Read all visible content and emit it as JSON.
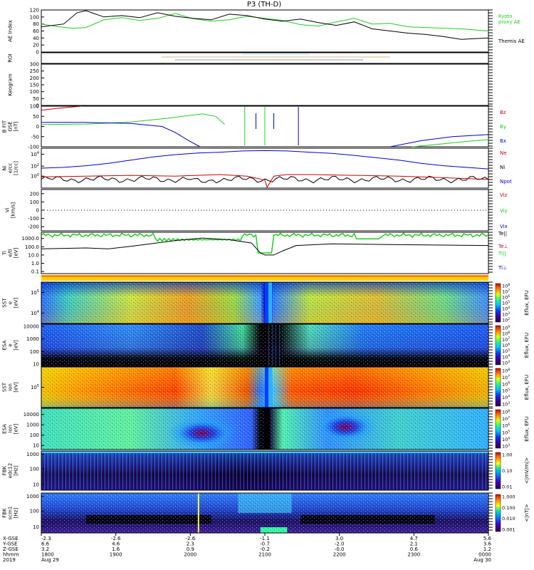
{
  "title": "P3 (TH-D)",
  "colors": {
    "red": "#cc0000",
    "green": "#22cc22",
    "blue": "#0000cc",
    "black": "#000000",
    "lightblue": "#66ccff",
    "orange": "#cc6600"
  },
  "chart_data": [
    {
      "type": "line",
      "panel": "ae",
      "ylabel": "AE Index",
      "ylim": [
        0,
        120
      ],
      "yticks": [
        "0",
        "20",
        "40",
        "60",
        "80",
        "100",
        "120"
      ],
      "series": [
        {
          "name": "Kyoto proxy AE",
          "label_lines": [
            "Kyoto",
            "proxy AE"
          ],
          "color": "#22cc22",
          "x": [
            0,
            0.04,
            0.07,
            0.1,
            0.14,
            0.18,
            0.22,
            0.26,
            0.3,
            0.34,
            0.38,
            0.42,
            0.46,
            0.5,
            0.54,
            0.58,
            0.62,
            0.66,
            0.7,
            0.74,
            0.78,
            0.82,
            0.86,
            0.9,
            0.94,
            1.0
          ],
          "y": [
            80,
            72,
            68,
            70,
            92,
            98,
            90,
            96,
            110,
            95,
            88,
            92,
            102,
            96,
            90,
            78,
            74,
            86,
            96,
            80,
            82,
            72,
            70,
            68,
            66,
            60
          ]
        },
        {
          "name": "Themis AE",
          "label_lines": [
            "Themis AE"
          ],
          "color": "#000000",
          "x": [
            0,
            0.05,
            0.08,
            0.1,
            0.14,
            0.18,
            0.22,
            0.26,
            0.3,
            0.34,
            0.38,
            0.42,
            0.46,
            0.5,
            0.54,
            0.58,
            0.62,
            0.66,
            0.7,
            0.74,
            0.78,
            0.82,
            0.86,
            0.9,
            0.94,
            1.0
          ],
          "y": [
            72,
            80,
            112,
            118,
            100,
            104,
            98,
            112,
            102,
            96,
            92,
            108,
            104,
            94,
            88,
            94,
            84,
            76,
            86,
            66,
            60,
            54,
            50,
            44,
            36,
            40
          ]
        }
      ]
    },
    {
      "type": "bar",
      "panel": "roi",
      "ylabel": "ROI"
    },
    {
      "type": "bar",
      "panel": "keogram",
      "ylabel": "Keogram",
      "ylim": [
        0,
        300
      ],
      "yticks": [
        "0",
        "50",
        "100",
        "150",
        "200",
        "250",
        "300"
      ]
    },
    {
      "type": "line",
      "panel": "bfit",
      "ylabel": "B FIT",
      "ylabel_lines": [
        "B FIT",
        "GSE",
        "[nT]"
      ],
      "ylim": [
        -100,
        100
      ],
      "yticks": [
        "-100",
        "-50",
        "0",
        "50",
        "100"
      ],
      "series": [
        {
          "name": "Bz",
          "color": "#cc0000",
          "x": [
            0,
            0.04,
            0.09
          ],
          "y": [
            80,
            90,
            100
          ]
        },
        {
          "name": "By",
          "color": "#22cc22",
          "x": [
            0,
            0.1,
            0.2,
            0.28,
            0.36,
            0.39,
            0.41
          ],
          "y": [
            10,
            12,
            22,
            40,
            62,
            50,
            10
          ]
        },
        {
          "name": "Bx",
          "color": "#0000cc",
          "x": [
            0,
            0.1,
            0.2,
            0.27,
            0.3,
            0.33,
            0.355
          ],
          "y": [
            20,
            20,
            15,
            0,
            -30,
            -70,
            -100
          ]
        }
      ]
    },
    {
      "type": "line",
      "panel": "ni",
      "ylabel": "Ni",
      "ylabel_lines": [
        "Ni",
        "e/cc",
        "[1/cc]"
      ],
      "ylim": [
        "10^-4",
        "10^5"
      ],
      "yticks": [
        "10^0",
        "10^2",
        "10^4"
      ],
      "series": [
        {
          "name": "Ne",
          "color": "#cc0000"
        },
        {
          "name": "Ni",
          "color": "#000000"
        },
        {
          "name": "Npot",
          "color": "#0000cc"
        }
      ]
    },
    {
      "type": "line",
      "panel": "vi",
      "ylabel": "Vi",
      "ylabel_lines": [
        "Vi",
        "[km/s]"
      ],
      "ylim": [
        -250,
        250
      ],
      "yticks": [
        "-200",
        "-100",
        "0",
        "100",
        "200"
      ],
      "series": [
        {
          "name": "Viz",
          "color": "#cc0000"
        },
        {
          "name": "Viy",
          "color": "#22cc22"
        },
        {
          "name": "Vix",
          "color": "#0000cc"
        }
      ]
    },
    {
      "type": "line",
      "panel": "ti",
      "ylabel": "Ti",
      "ylabel_lines": [
        "Ti",
        "e/ti",
        "[eV]"
      ],
      "ylim": [
        "0.1",
        "1000.0"
      ],
      "yticks": [
        "0.1",
        "1.0",
        "10.0",
        "100.0",
        "1000.0"
      ],
      "series": [
        {
          "name": "Te||",
          "color": "#000000"
        },
        {
          "name": "Te⊥",
          "color": "#cc0000"
        },
        {
          "name": "Ti||",
          "color": "#22cc22"
        },
        {
          "name": "Ti⊥",
          "color": "#0000cc"
        }
      ]
    },
    {
      "type": "heatmap",
      "panel": "sst_e",
      "ylabel_lines": [
        "SST",
        "e",
        "[eV]"
      ],
      "yticks": [
        "10^5",
        "10^4"
      ],
      "colorbar_label": "Eflux, EFU",
      "colorbar_ticks": [
        "10^8",
        "10^7",
        "10^6",
        "10^5",
        "10^4",
        "10^3",
        "10^2"
      ]
    },
    {
      "type": "heatmap",
      "panel": "esa_e",
      "ylabel_lines": [
        "ESA",
        "e",
        "[eV]"
      ],
      "yticks": [
        "10",
        "100",
        "1000",
        "10000"
      ],
      "colorbar_label": "Eflux, EFU",
      "colorbar_ticks": [
        "10^9",
        "10^8",
        "10^7",
        "10^6",
        "10^5",
        "10^4",
        "10^3"
      ]
    },
    {
      "type": "heatmap",
      "panel": "sst_i",
      "ylabel_lines": [
        "SST",
        "ion",
        "[eV]"
      ],
      "yticks": [
        "10^5"
      ],
      "colorbar_label": "Eflux, EFU",
      "colorbar_ticks": [
        "10^8",
        "10^7",
        "10^6",
        "10^5",
        "10^4",
        "10^3"
      ]
    },
    {
      "type": "heatmap",
      "panel": "esa_i",
      "ylabel_lines": [
        "ESA",
        "ion",
        "[eV]"
      ],
      "yticks": [
        "10",
        "100",
        "1000",
        "10000"
      ],
      "colorbar_label": "Eflux, EFU",
      "colorbar_ticks": [
        "10^8",
        "10^7",
        "10^6",
        "10^5",
        "10^4",
        "10^3"
      ]
    },
    {
      "type": "heatmap",
      "panel": "fbk_e",
      "ylabel_lines": [
        "FBK",
        "edc12",
        "[Hz]"
      ],
      "yticks": [
        "10",
        "100",
        "1000"
      ],
      "colorbar_label": "<|mV/m|>",
      "colorbar_ticks": [
        "1.00",
        "0.10",
        "0.01"
      ]
    },
    {
      "type": "heatmap",
      "panel": "fbk_b",
      "ylabel_lines": [
        "FBK",
        "scm1",
        "[Hz]"
      ],
      "yticks": [
        "10",
        "100",
        "1000"
      ],
      "colorbar_label": "<|nT|>",
      "colorbar_ticks": [
        "1.000",
        "0.100",
        "0.010",
        "0.001"
      ]
    }
  ],
  "axis": {
    "row_labels": [
      "X-GSE",
      "Y-GSE",
      "Z-GSE",
      "hhmm",
      "2019"
    ],
    "columns": [
      {
        "x": "-2.3",
        "y": "6.6",
        "z": "3.2",
        "t": "1800",
        "d": "Aug 29"
      },
      {
        "x": "-2.6",
        "y": "4.6",
        "z": "1.6",
        "t": "1900",
        "d": ""
      },
      {
        "x": "-2.6",
        "y": "2.3",
        "z": "0.9",
        "t": "2000",
        "d": ""
      },
      {
        "x": "-1.1",
        "y": "-0.7",
        "z": "-0.2",
        "t": "2100",
        "d": ""
      },
      {
        "x": "3.0",
        "y": "-2.0",
        "z": "-0.0",
        "t": "2200",
        "d": ""
      },
      {
        "x": "4.7",
        "y": "2.1",
        "z": "0.6",
        "t": "2300",
        "d": ""
      },
      {
        "x": "5.6",
        "y": "3.6",
        "z": "1.2",
        "t": "0000",
        "d": "Aug 30"
      }
    ]
  }
}
